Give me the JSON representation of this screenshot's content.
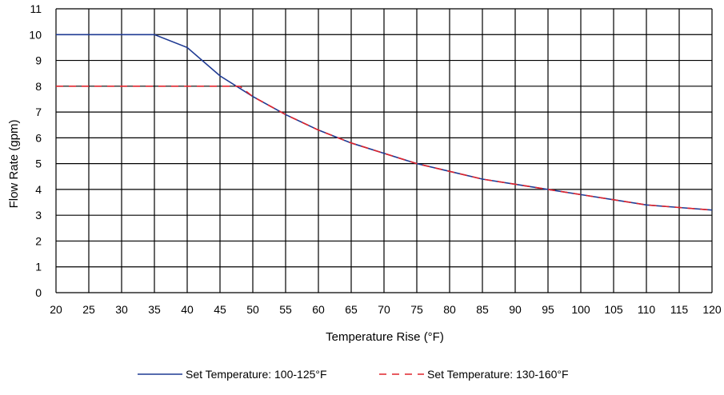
{
  "chart_data": {
    "type": "line",
    "title": "",
    "xlabel": "Temperature Rise (°F)",
    "ylabel": "Flow Rate (gpm)",
    "xlim": [
      20,
      120
    ],
    "ylim": [
      0,
      11
    ],
    "x_ticks": [
      "20",
      "25",
      "30",
      "35",
      "40",
      "45",
      "50",
      "55",
      "60",
      "65",
      "70",
      "75",
      "80",
      "85",
      "90",
      "95",
      "100",
      "105",
      "110",
      "115",
      "120"
    ],
    "y_ticks": [
      "0",
      "1",
      "2",
      "3",
      "4",
      "5",
      "6",
      "7",
      "8",
      "9",
      "10",
      "11"
    ],
    "grid": true,
    "legend_position": "bottom",
    "series": [
      {
        "name": "Set Temperature: 100-125°F",
        "color": "#1f3a93",
        "style": "solid",
        "points": [
          [
            20,
            10
          ],
          [
            25,
            10
          ],
          [
            30,
            10
          ],
          [
            35,
            10
          ],
          [
            40,
            9.5
          ],
          [
            45,
            8.4
          ],
          [
            50,
            7.6
          ],
          [
            55,
            6.9
          ],
          [
            60,
            6.3
          ],
          [
            65,
            5.8
          ],
          [
            70,
            5.4
          ],
          [
            75,
            5.0
          ],
          [
            80,
            4.7
          ],
          [
            85,
            4.4
          ],
          [
            90,
            4.2
          ],
          [
            95,
            4.0
          ],
          [
            100,
            3.8
          ],
          [
            105,
            3.6
          ],
          [
            110,
            3.4
          ],
          [
            115,
            3.3
          ],
          [
            120,
            3.2
          ]
        ]
      },
      {
        "name": "Set Temperature: 130-160°F",
        "color": "#e0242c",
        "style": "dashed",
        "points": [
          [
            20,
            8
          ],
          [
            25,
            8
          ],
          [
            30,
            8
          ],
          [
            35,
            8
          ],
          [
            40,
            8
          ],
          [
            45,
            8
          ],
          [
            48,
            8
          ],
          [
            50,
            7.6
          ],
          [
            55,
            6.9
          ],
          [
            60,
            6.3
          ],
          [
            65,
            5.8
          ],
          [
            70,
            5.4
          ],
          [
            75,
            5.0
          ],
          [
            80,
            4.7
          ],
          [
            85,
            4.4
          ],
          [
            90,
            4.2
          ],
          [
            95,
            4.0
          ],
          [
            100,
            3.8
          ],
          [
            105,
            3.6
          ],
          [
            110,
            3.4
          ],
          [
            115,
            3.3
          ],
          [
            120,
            3.2
          ]
        ]
      }
    ]
  }
}
